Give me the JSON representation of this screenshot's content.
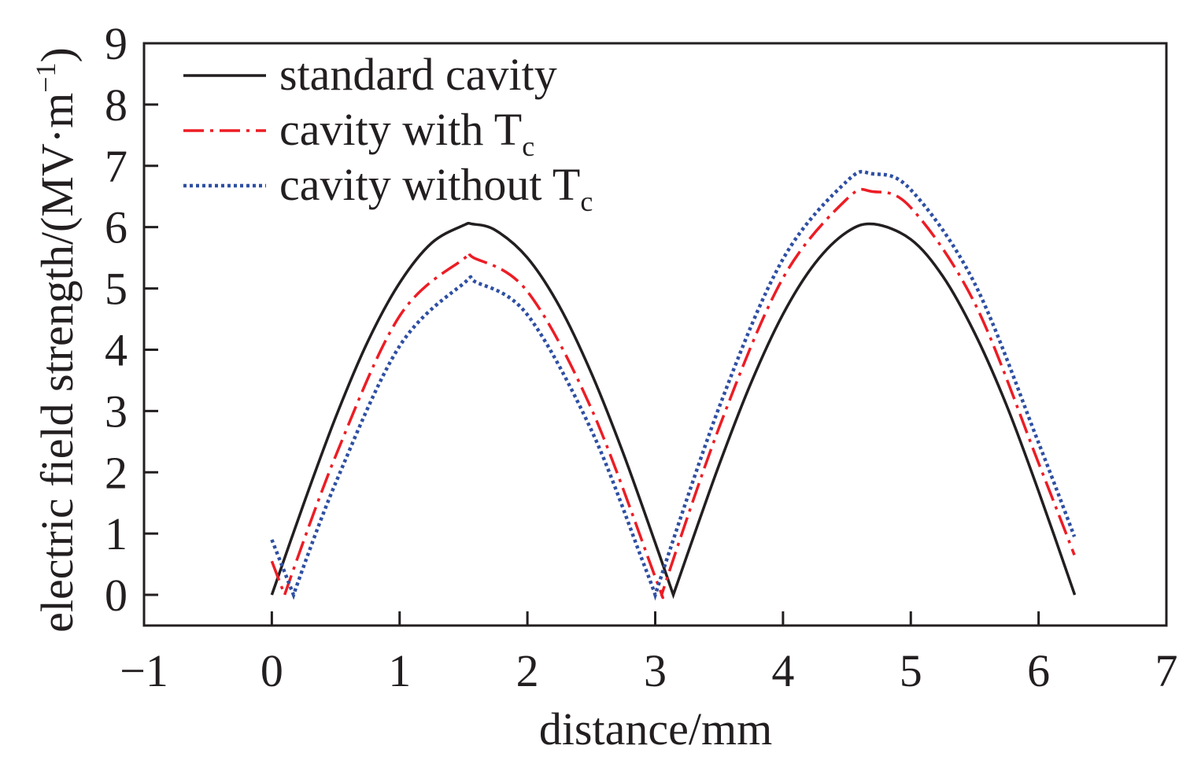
{
  "chart_data": {
    "type": "line",
    "title": "",
    "xlabel": "distance/mm",
    "ylabel": "electric field strength/(MV·m",
    "ylabel_sup": "−1",
    "ylabel_close": ")",
    "xlim": [
      -1,
      7
    ],
    "ylim": [
      -0.5,
      9
    ],
    "xticks": [
      -1,
      0,
      1,
      2,
      3,
      4,
      5,
      6,
      7
    ],
    "xtick_labels": [
      "−1",
      "0",
      "1",
      "2",
      "3",
      "4",
      "5",
      "6",
      "7"
    ],
    "yticks": [
      0,
      1,
      2,
      3,
      4,
      5,
      6,
      7,
      8,
      9
    ],
    "ytick_labels": [
      "0",
      "1",
      "2",
      "3",
      "4",
      "5",
      "6",
      "7",
      "8",
      "9"
    ],
    "grid": false,
    "legend_position": "top-left",
    "series": [
      {
        "name": "standard cavity",
        "name_sub": "",
        "color": "#231f20",
        "style": "solid",
        "x": [
          0,
          0.25,
          0.5,
          0.75,
          1,
          1.25,
          1.5,
          1.571,
          1.75,
          2,
          2.25,
          2.5,
          2.75,
          3,
          3.1416,
          3.25,
          3.5,
          3.75,
          4,
          4.25,
          4.5,
          4.712,
          5,
          5.25,
          5.5,
          5.75,
          6,
          6.283
        ],
        "y": [
          0,
          1.49,
          2.9,
          4.13,
          5.09,
          5.74,
          6.03,
          6.05,
          5.95,
          5.5,
          4.71,
          3.62,
          2.31,
          0.85,
          0,
          0.65,
          2.12,
          3.46,
          4.58,
          5.41,
          5.92,
          6.05,
          5.8,
          5.2,
          4.27,
          3.09,
          1.69,
          0
        ]
      },
      {
        "name": "cavity with T",
        "name_sub": "c",
        "color": "#ed1c24",
        "style": "dashdot",
        "x": [
          0,
          0.1,
          0.5,
          1,
          1.5,
          1.58,
          2,
          2.5,
          3,
          3.05,
          3.5,
          4,
          4.5,
          4.7,
          5,
          5.5,
          6,
          6.28
        ],
        "y": [
          0.55,
          0,
          2.27,
          4.55,
          5.48,
          5.5,
          4.95,
          3.04,
          0.29,
          0,
          2.73,
          5.17,
          6.46,
          6.58,
          6.32,
          4.76,
          2.15,
          0.65
        ]
      },
      {
        "name": "cavity without T",
        "name_sub": "c",
        "color": "#2e4fa3",
        "style": "dotted",
        "x": [
          0,
          0.17,
          0.5,
          1,
          1.5,
          1.6,
          2,
          2.5,
          2.9,
          3,
          3.5,
          4,
          4.5,
          4.7,
          5,
          5.5,
          6,
          6.28
        ],
        "y": [
          0.9,
          0,
          1.83,
          4.06,
          5.08,
          5.1,
          4.57,
          2.69,
          0.56,
          0,
          3.06,
          5.48,
          6.75,
          6.87,
          6.61,
          5.08,
          2.48,
          0.95
        ]
      }
    ]
  }
}
